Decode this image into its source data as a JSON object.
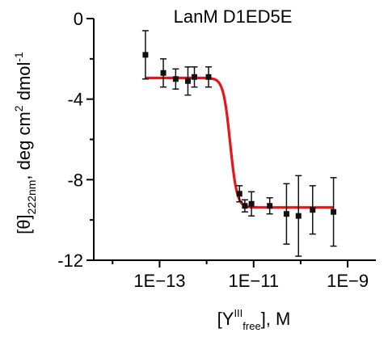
{
  "chart_data": {
    "type": "scatter",
    "title": "LanM D1ED5E",
    "xlabel": {
      "pre": "[Y",
      "sup": "III",
      "sub": "free",
      "post": "], M"
    },
    "ylabel": {
      "pre": "[θ]",
      "sub": "222nm",
      "mid": ", deg cm",
      "sup1": "2",
      "mid2": " dmol",
      "sup2": "-1"
    },
    "x_scale": "log10",
    "xlim_exp": [
      -14.4,
      -8.4
    ],
    "ylim": [
      -12,
      0
    ],
    "xticks": [
      {
        "exp": -13,
        "label": "1E−13"
      },
      {
        "exp": -11,
        "label": "1E−11"
      },
      {
        "exp": -9,
        "label": "1E−9"
      }
    ],
    "yticks": [
      {
        "value": 0,
        "label": "0"
      },
      {
        "value": -4,
        "label": "-4"
      },
      {
        "value": -8,
        "label": "-8"
      },
      {
        "value": -12,
        "label": "-12"
      }
    ],
    "points": [
      {
        "x": "5E-14",
        "y": -1.8,
        "err": 1.2
      },
      {
        "x": "1.2E-13",
        "y": -2.7,
        "err": 0.7
      },
      {
        "x": "2.2E-13",
        "y": -3.0,
        "err": 0.5
      },
      {
        "x": "4E-13",
        "y": -3.1,
        "err": 0.7
      },
      {
        "x": "5.5E-13",
        "y": -2.9,
        "err": 0.5
      },
      {
        "x": "1.1E-12",
        "y": -2.9,
        "err": 0.5
      },
      {
        "x": "5E-12",
        "y": -8.7,
        "err": 0.4
      },
      {
        "x": "6.5E-12",
        "y": -9.3,
        "err": 0.3
      },
      {
        "x": "9E-12",
        "y": -9.2,
        "err": 0.6
      },
      {
        "x": "2.2E-11",
        "y": -9.3,
        "err": 0.4
      },
      {
        "x": "5E-11",
        "y": -9.7,
        "err": 1.5
      },
      {
        "x": "9E-11",
        "y": -9.8,
        "err": 2.0
      },
      {
        "x": "1.8E-10",
        "y": -9.5,
        "err": 1.2
      },
      {
        "x": "5E-10",
        "y": -9.6,
        "err": 1.7
      }
    ],
    "fit": {
      "color": "#e8141b",
      "top": -2.95,
      "bottom": -9.38,
      "x_start_exp": -13.3,
      "x_end_exp": -9.3,
      "midpoint_exp": -11.5,
      "hill": 6
    },
    "marker_color": "#111111"
  }
}
